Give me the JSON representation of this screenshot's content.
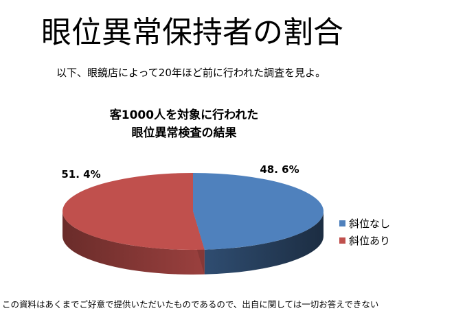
{
  "slide": {
    "title": "眼位異常保持者の割合",
    "subtitle": "以下、眼鏡店によって20年ほど前に行われた調査を見よ。",
    "footnote": "この資料はあくまでご好意で提供いただいたものであるので、出自に関しては一切お答えできない"
  },
  "chart_data": {
    "type": "pie",
    "title_lines": [
      "客1000人を対象に行われた",
      "眼位異常検査の結果"
    ],
    "slices": [
      {
        "name": "斜位なし",
        "value": 48.6,
        "label": "48. 6%",
        "color": "#4F81BD"
      },
      {
        "name": "斜位あり",
        "value": 51.4,
        "label": "51. 4%",
        "color": "#C0504D"
      }
    ],
    "legend_position": "right",
    "style": "3d"
  }
}
